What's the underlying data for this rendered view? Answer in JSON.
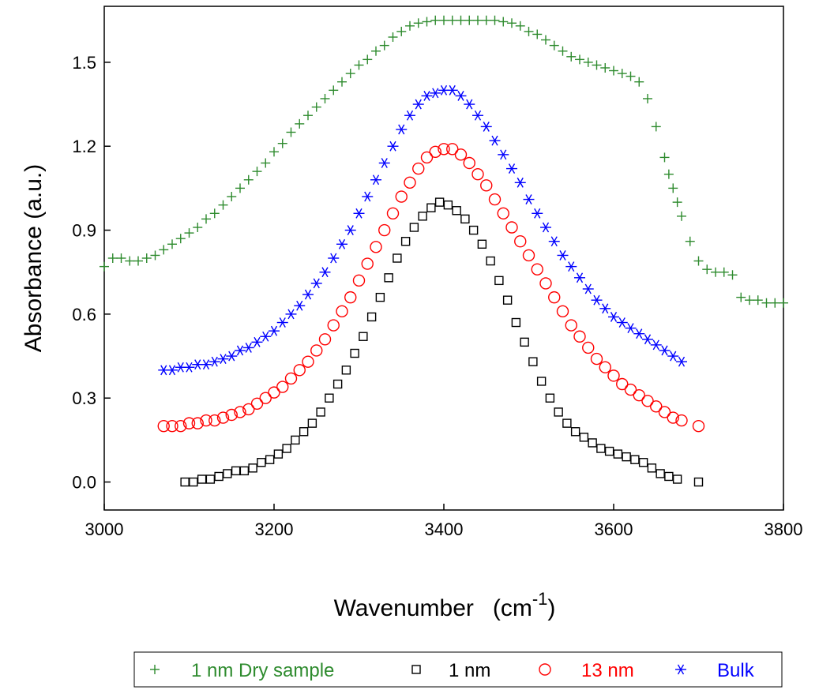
{
  "chart_data": {
    "type": "scatter",
    "title": "",
    "xlabel": "Wavenumber",
    "xlabel_unit_base": "(cm",
    "xlabel_unit_sup": "-1",
    "xlabel_unit_close": ")",
    "ylabel": "Absorbance (a.u.)",
    "xlim": [
      3000,
      3800
    ],
    "ylim": [
      -0.1,
      1.7
    ],
    "xticks": [
      3000,
      3200,
      3400,
      3600,
      3800
    ],
    "xtick_labels": [
      "3000",
      "3200",
      "3400",
      "3600",
      "3800"
    ],
    "yticks": [
      0.0,
      0.3,
      0.6,
      0.9,
      1.2,
      1.5
    ],
    "ytick_labels": [
      "0.0",
      "0.3",
      "0.6",
      "0.9",
      "1.2",
      "1.5"
    ],
    "grid": false,
    "legend_position": "bottom",
    "series": [
      {
        "name": "1 nm Dry sample",
        "marker": "plus",
        "color": "#2e8b2e",
        "x": [
          3000,
          3010,
          3020,
          3030,
          3040,
          3050,
          3060,
          3070,
          3080,
          3090,
          3100,
          3110,
          3120,
          3130,
          3140,
          3150,
          3160,
          3170,
          3180,
          3190,
          3200,
          3210,
          3220,
          3230,
          3240,
          3250,
          3260,
          3270,
          3280,
          3290,
          3300,
          3310,
          3320,
          3330,
          3340,
          3350,
          3360,
          3370,
          3380,
          3390,
          3400,
          3410,
          3420,
          3430,
          3440,
          3450,
          3460,
          3470,
          3480,
          3490,
          3500,
          3510,
          3520,
          3530,
          3540,
          3550,
          3560,
          3570,
          3580,
          3590,
          3600,
          3610,
          3620,
          3630,
          3640,
          3650,
          3660,
          3665,
          3670,
          3675,
          3680,
          3690,
          3700,
          3710,
          3720,
          3730,
          3740,
          3750,
          3760,
          3770,
          3780,
          3790,
          3800
        ],
        "y": [
          0.77,
          0.8,
          0.8,
          0.79,
          0.79,
          0.8,
          0.81,
          0.83,
          0.85,
          0.87,
          0.89,
          0.91,
          0.94,
          0.96,
          0.99,
          1.02,
          1.05,
          1.08,
          1.11,
          1.14,
          1.18,
          1.21,
          1.25,
          1.28,
          1.31,
          1.34,
          1.37,
          1.4,
          1.43,
          1.46,
          1.49,
          1.51,
          1.54,
          1.56,
          1.59,
          1.61,
          1.63,
          1.64,
          1.645,
          1.65,
          1.65,
          1.65,
          1.65,
          1.65,
          1.65,
          1.65,
          1.65,
          1.645,
          1.64,
          1.63,
          1.61,
          1.6,
          1.58,
          1.56,
          1.54,
          1.52,
          1.51,
          1.5,
          1.49,
          1.48,
          1.47,
          1.46,
          1.45,
          1.43,
          1.37,
          1.27,
          1.16,
          1.1,
          1.05,
          1.0,
          0.95,
          0.86,
          0.79,
          0.76,
          0.75,
          0.75,
          0.74,
          0.66,
          0.65,
          0.65,
          0.64,
          0.64,
          0.64
        ]
      },
      {
        "name": "1 nm",
        "marker": "square",
        "color": "#000000",
        "x": [
          3095,
          3105,
          3115,
          3125,
          3135,
          3145,
          3155,
          3165,
          3175,
          3185,
          3195,
          3205,
          3215,
          3225,
          3235,
          3245,
          3255,
          3265,
          3275,
          3285,
          3295,
          3305,
          3315,
          3325,
          3335,
          3345,
          3355,
          3365,
          3375,
          3385,
          3395,
          3405,
          3415,
          3425,
          3435,
          3445,
          3455,
          3465,
          3475,
          3485,
          3495,
          3505,
          3515,
          3525,
          3535,
          3545,
          3555,
          3565,
          3575,
          3585,
          3595,
          3605,
          3615,
          3625,
          3635,
          3645,
          3655,
          3665,
          3675,
          3700
        ],
        "y": [
          0.0,
          0.0,
          0.01,
          0.01,
          0.02,
          0.03,
          0.04,
          0.04,
          0.05,
          0.07,
          0.08,
          0.1,
          0.12,
          0.15,
          0.18,
          0.21,
          0.25,
          0.3,
          0.35,
          0.4,
          0.46,
          0.52,
          0.59,
          0.66,
          0.73,
          0.8,
          0.86,
          0.91,
          0.95,
          0.98,
          1.0,
          0.99,
          0.97,
          0.94,
          0.9,
          0.85,
          0.79,
          0.72,
          0.65,
          0.57,
          0.5,
          0.43,
          0.36,
          0.3,
          0.25,
          0.21,
          0.18,
          0.16,
          0.14,
          0.12,
          0.11,
          0.1,
          0.09,
          0.08,
          0.07,
          0.05,
          0.03,
          0.02,
          0.01,
          0.0
        ]
      },
      {
        "name": "13 nm",
        "marker": "circle",
        "color": "#ff0000",
        "x": [
          3070,
          3080,
          3090,
          3100,
          3110,
          3120,
          3130,
          3140,
          3150,
          3160,
          3170,
          3180,
          3190,
          3200,
          3210,
          3220,
          3230,
          3240,
          3250,
          3260,
          3270,
          3280,
          3290,
          3300,
          3310,
          3320,
          3330,
          3340,
          3350,
          3360,
          3370,
          3380,
          3390,
          3400,
          3410,
          3420,
          3430,
          3440,
          3450,
          3460,
          3470,
          3480,
          3490,
          3500,
          3510,
          3520,
          3530,
          3540,
          3550,
          3560,
          3570,
          3580,
          3590,
          3600,
          3610,
          3620,
          3630,
          3640,
          3650,
          3660,
          3670,
          3680,
          3700
        ],
        "y": [
          0.2,
          0.2,
          0.2,
          0.21,
          0.21,
          0.22,
          0.22,
          0.23,
          0.24,
          0.25,
          0.26,
          0.28,
          0.3,
          0.32,
          0.34,
          0.37,
          0.4,
          0.43,
          0.47,
          0.51,
          0.56,
          0.61,
          0.66,
          0.72,
          0.78,
          0.84,
          0.9,
          0.96,
          1.02,
          1.07,
          1.12,
          1.16,
          1.18,
          1.19,
          1.19,
          1.17,
          1.14,
          1.1,
          1.06,
          1.01,
          0.96,
          0.91,
          0.86,
          0.81,
          0.76,
          0.71,
          0.66,
          0.61,
          0.56,
          0.52,
          0.48,
          0.44,
          0.41,
          0.38,
          0.35,
          0.33,
          0.31,
          0.29,
          0.27,
          0.25,
          0.23,
          0.22,
          0.2
        ]
      },
      {
        "name": "Bulk",
        "marker": "asterisk",
        "color": "#0000ff",
        "x": [
          3070,
          3080,
          3090,
          3100,
          3110,
          3120,
          3130,
          3140,
          3150,
          3160,
          3170,
          3180,
          3190,
          3200,
          3210,
          3220,
          3230,
          3240,
          3250,
          3260,
          3270,
          3280,
          3290,
          3300,
          3310,
          3320,
          3330,
          3340,
          3350,
          3360,
          3370,
          3380,
          3390,
          3400,
          3410,
          3420,
          3430,
          3440,
          3450,
          3460,
          3470,
          3480,
          3490,
          3500,
          3510,
          3520,
          3530,
          3540,
          3550,
          3560,
          3570,
          3580,
          3590,
          3600,
          3610,
          3620,
          3630,
          3640,
          3650,
          3660,
          3670,
          3680
        ],
        "y": [
          0.4,
          0.4,
          0.41,
          0.41,
          0.42,
          0.42,
          0.43,
          0.44,
          0.45,
          0.47,
          0.48,
          0.5,
          0.52,
          0.54,
          0.57,
          0.6,
          0.63,
          0.67,
          0.71,
          0.75,
          0.8,
          0.85,
          0.9,
          0.96,
          1.02,
          1.08,
          1.14,
          1.2,
          1.26,
          1.31,
          1.35,
          1.38,
          1.39,
          1.4,
          1.4,
          1.38,
          1.35,
          1.31,
          1.27,
          1.22,
          1.17,
          1.12,
          1.07,
          1.01,
          0.96,
          0.91,
          0.86,
          0.81,
          0.77,
          0.73,
          0.69,
          0.65,
          0.62,
          0.59,
          0.57,
          0.55,
          0.53,
          0.51,
          0.49,
          0.47,
          0.45,
          0.43
        ]
      }
    ]
  }
}
